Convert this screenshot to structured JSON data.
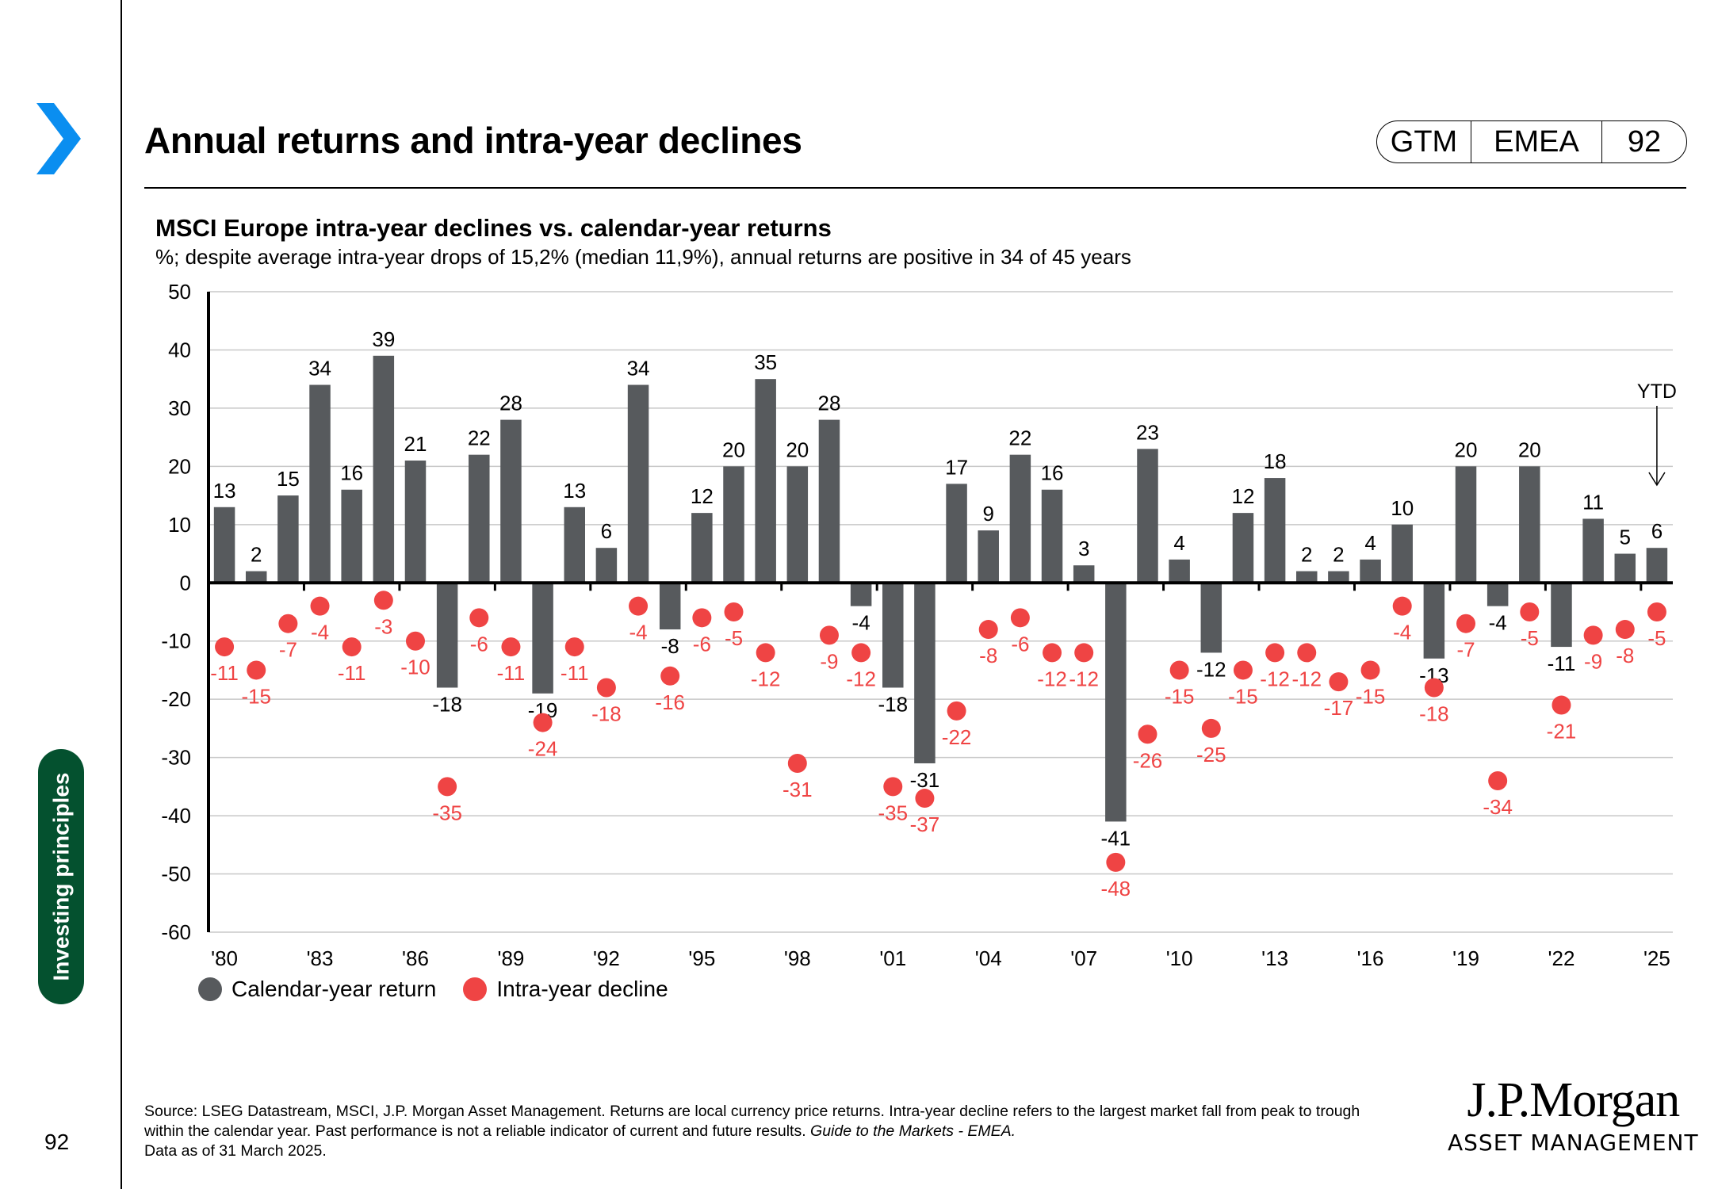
{
  "header": {
    "title": "Annual returns and intra-year declines",
    "badge": {
      "region_code": "GTM",
      "region": "EMEA",
      "page": "92"
    }
  },
  "sidebar": {
    "section_label": "Investing principles",
    "page_number": "92",
    "accent_color": "#0a8ef0",
    "section_color": "#04512f"
  },
  "chart_title": "MSCI Europe intra-year declines vs. calendar-year returns",
  "chart_subtitle": "%; despite average intra-year drops of 15,2% (median 11,9%), annual returns are positive in 34 of 45 years",
  "legend": [
    {
      "label": "Calendar-year return",
      "color": "#575a5d"
    },
    {
      "label": "Intra-year decline",
      "color": "#ef4444"
    }
  ],
  "chart_data": {
    "type": "bar",
    "title": "MSCI Europe intra-year declines vs. calendar-year returns",
    "subtitle": "%; despite average intra-year drops of 15,2% (median 11,9%), annual returns are positive in 34 of 45 years",
    "xlabel": "",
    "ylabel": "%",
    "ylim": [
      -60,
      50
    ],
    "yticks": [
      50,
      40,
      30,
      20,
      10,
      0,
      -10,
      -20,
      -30,
      -40,
      -50,
      -60
    ],
    "grid": true,
    "legend_position": "bottom-left",
    "x": [
      1980,
      1981,
      1982,
      1983,
      1984,
      1985,
      1986,
      1987,
      1988,
      1989,
      1990,
      1991,
      1992,
      1993,
      1994,
      1995,
      1996,
      1997,
      1998,
      1999,
      2000,
      2001,
      2002,
      2003,
      2004,
      2005,
      2006,
      2007,
      2008,
      2009,
      2010,
      2011,
      2012,
      2013,
      2014,
      2015,
      2016,
      2017,
      2018,
      2019,
      2020,
      2021,
      2022,
      2023,
      2024,
      2025
    ],
    "xtick_labels": [
      "'80",
      "'83",
      "'86",
      "'89",
      "'92",
      "'95",
      "'98",
      "'01",
      "'04",
      "'07",
      "'10",
      "'13",
      "'16",
      "'19",
      "'22",
      "'25"
    ],
    "series": [
      {
        "name": "Calendar-year return",
        "type": "bar",
        "color": "#575a5d",
        "values": [
          13,
          2,
          15,
          34,
          16,
          39,
          21,
          -18,
          22,
          28,
          -19,
          13,
          6,
          34,
          -8,
          12,
          20,
          35,
          20,
          28,
          -4,
          -18,
          -31,
          17,
          9,
          22,
          16,
          3,
          -41,
          23,
          4,
          -12,
          12,
          18,
          2,
          2,
          4,
          10,
          -13,
          20,
          -4,
          20,
          -11,
          11,
          5,
          6
        ]
      },
      {
        "name": "Intra-year decline",
        "type": "scatter",
        "color": "#ef4444",
        "values": [
          -11,
          -15,
          -7,
          -4,
          -11,
          -3,
          -10,
          -35,
          -6,
          -11,
          -24,
          -11,
          -18,
          -4,
          -16,
          -6,
          -5,
          -12,
          -31,
          -9,
          -12,
          -35,
          -37,
          -22,
          -8,
          -6,
          -12,
          -12,
          -48,
          -26,
          -15,
          -25,
          -15,
          -12,
          -12,
          -17,
          -15,
          -4,
          -18,
          -7,
          -34,
          -5,
          -21,
          -9,
          -8,
          -5
        ]
      }
    ],
    "annotations": [
      {
        "text": "YTD",
        "target_year": 2025,
        "arrow": "down"
      }
    ]
  },
  "footer": {
    "source": "Source: LSEG Datastream, MSCI, J.P. Morgan Asset Management. Returns are local currency price returns. Intra-year decline refers to the largest market fall from peak to trough within the calendar year. Past performance is not a reliable indicator of current and future results.",
    "guide": "Guide to the Markets - EMEA.",
    "date": "Data as of 31 March 2025."
  },
  "logo": {
    "name": "J.P.Morgan",
    "tagline": "ASSET MANAGEMENT"
  }
}
